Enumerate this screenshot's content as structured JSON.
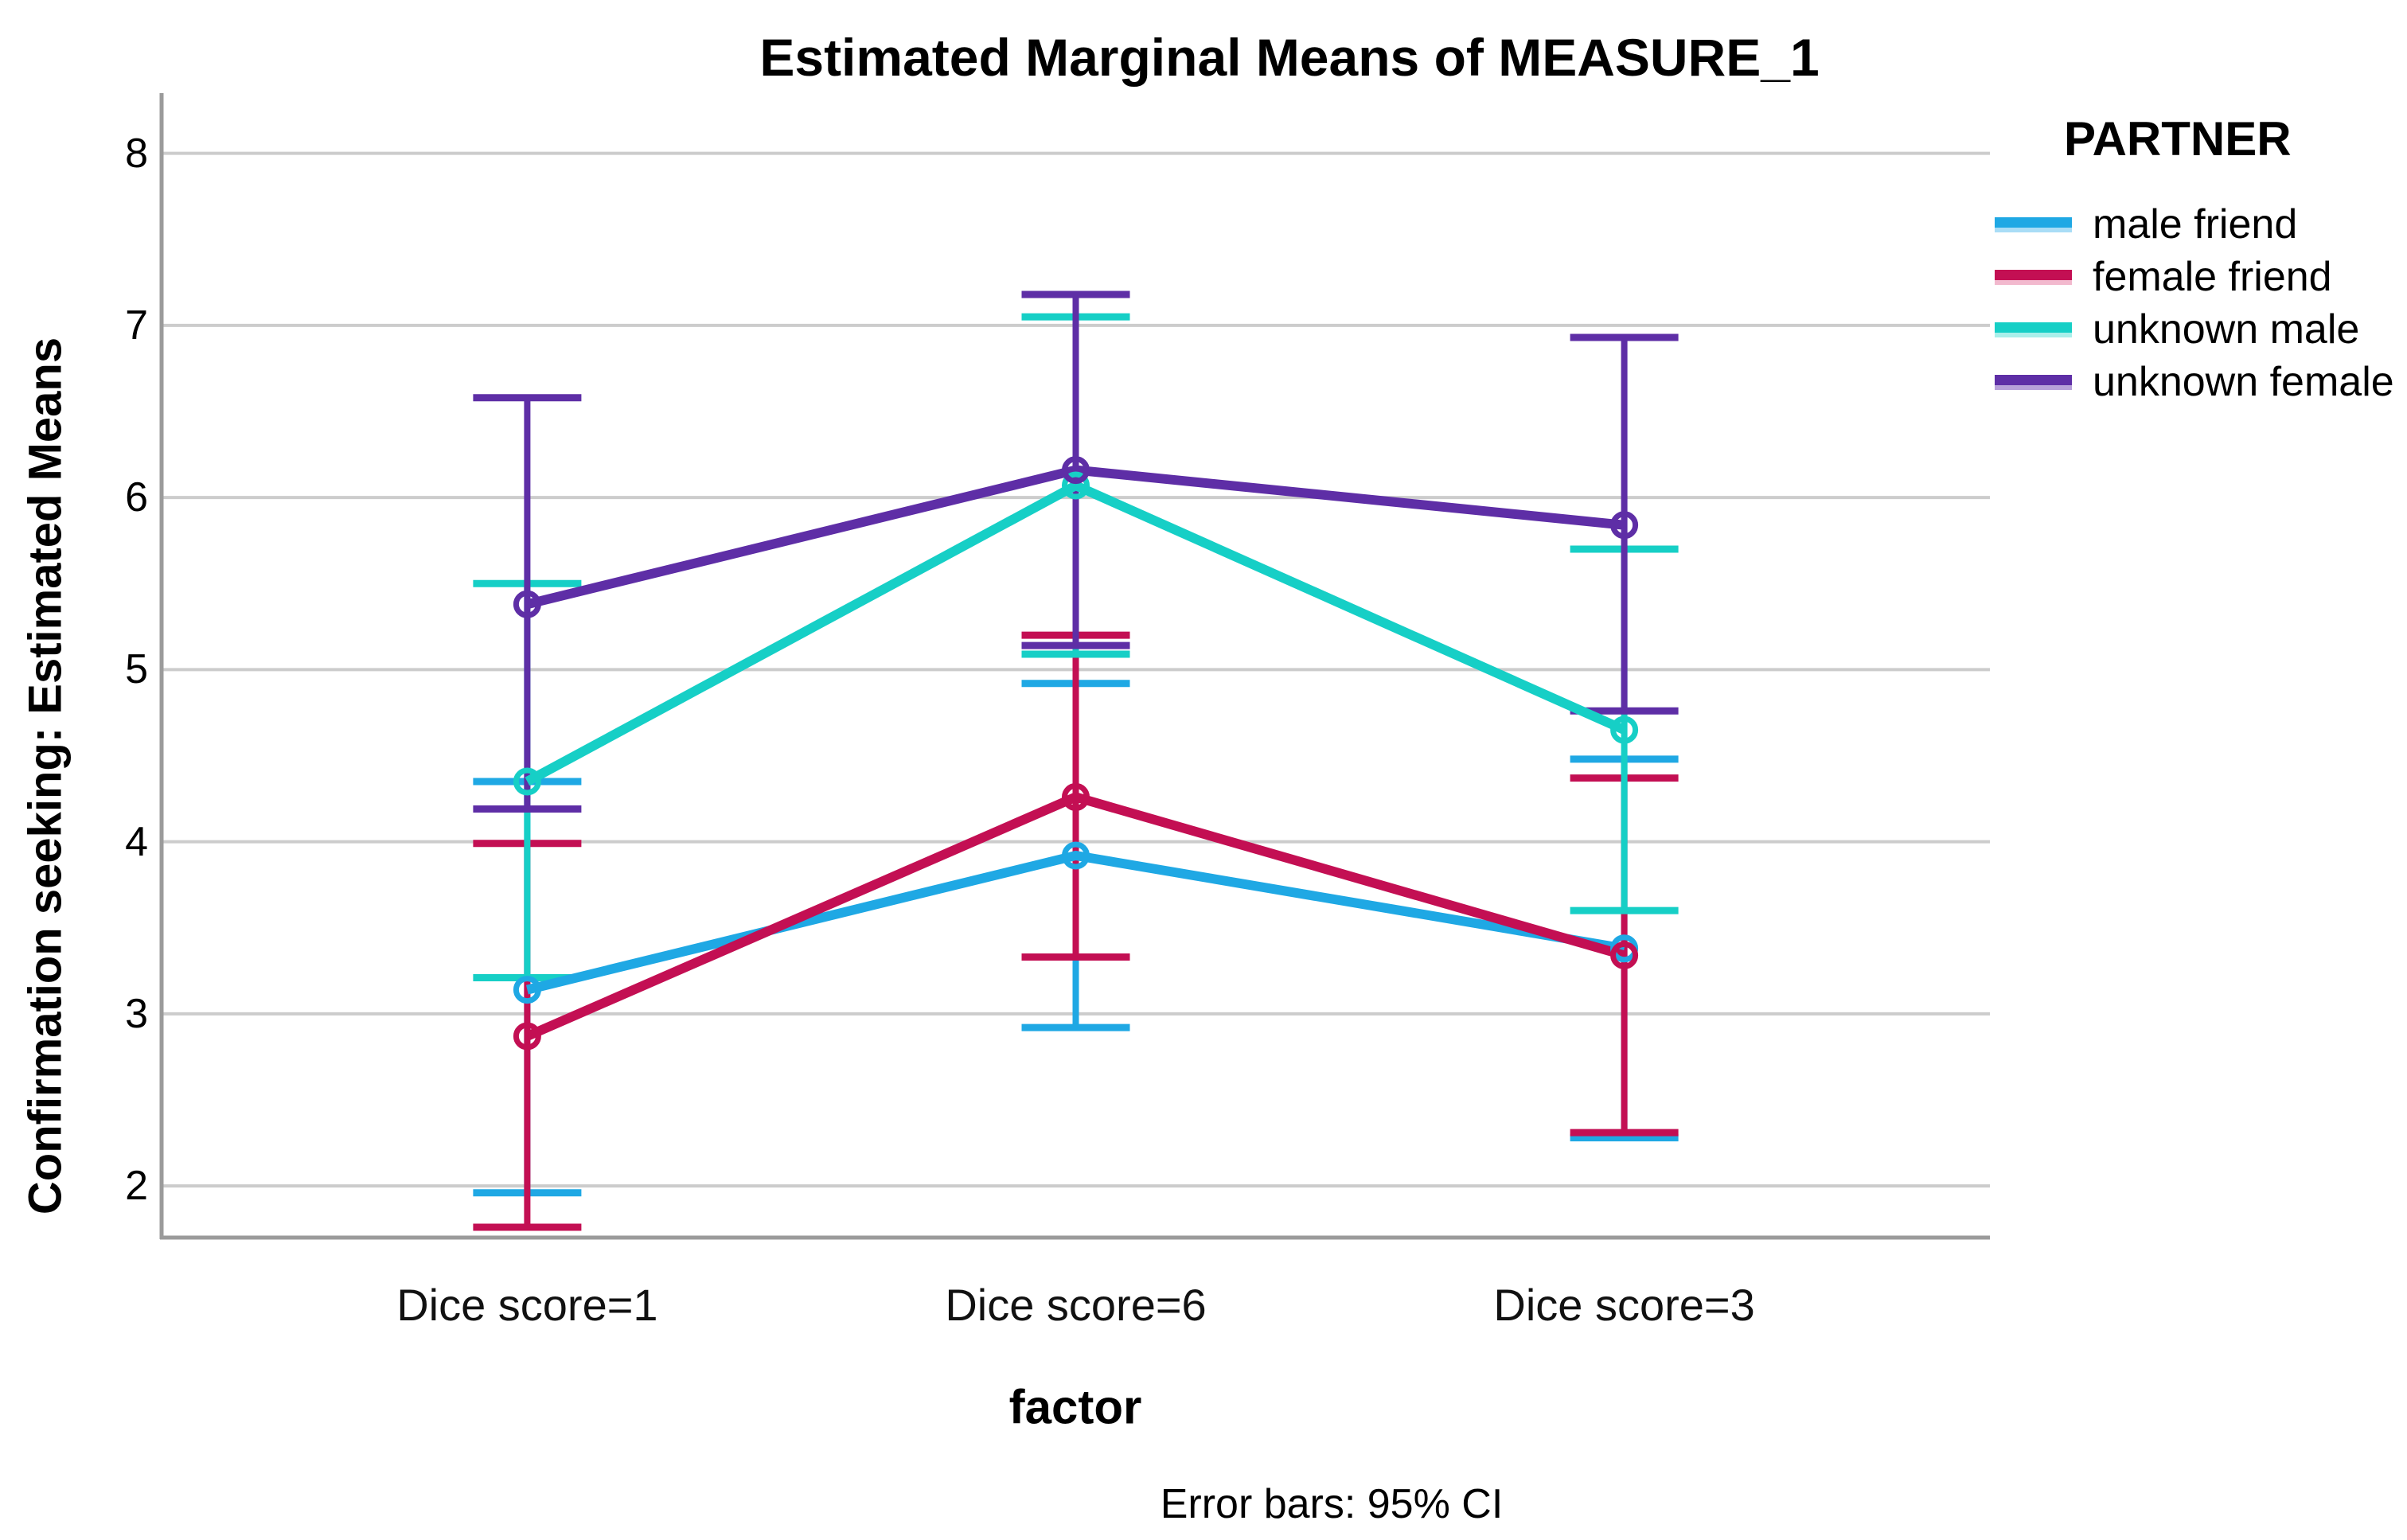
{
  "chart": {
    "title": "Estimated Marginal Means of MEASURE_1",
    "y_axis_title": "Confirmation seeking: Estimated Means",
    "x_axis_title": "factor",
    "footnote": "Error bars: 95% CI",
    "legend_title": "PARTNER",
    "colors": {
      "gridline": "#CCCCCC",
      "axis_line": "#9B9B9B",
      "text": "#000000"
    }
  },
  "chart_data": {
    "type": "line",
    "title": "Estimated Marginal Means of MEASURE_1",
    "xlabel": "factor",
    "ylabel": "Confirmation seeking: Estimated Means",
    "categories": [
      "Dice score=1",
      "Dice score=6",
      "Dice score=3"
    ],
    "yticks": [
      2,
      3,
      4,
      5,
      6,
      7,
      8
    ],
    "ylim": [
      1.7,
      8.35
    ],
    "grid": true,
    "legend_position": "right",
    "error_bars": "95% CI",
    "marker": "open-circle",
    "series": [
      {
        "name": "male friend",
        "color": "#1FA8E4",
        "tint": "#A9DDF6",
        "means": [
          3.14,
          3.92,
          3.38
        ],
        "ci_low": [
          1.96,
          2.92,
          2.28
        ],
        "ci_high": [
          4.35,
          4.92,
          4.48
        ]
      },
      {
        "name": "female friend",
        "color": "#C30F53",
        "tint": "#F2B9CE",
        "means": [
          2.87,
          4.26,
          3.34
        ],
        "ci_low": [
          1.76,
          3.33,
          2.31
        ],
        "ci_high": [
          3.99,
          5.2,
          4.37
        ]
      },
      {
        "name": "unknown male",
        "color": "#16CFC6",
        "tint": "#A9EFEA",
        "means": [
          4.35,
          6.07,
          4.65
        ],
        "ci_low": [
          3.21,
          5.09,
          3.6
        ],
        "ci_high": [
          5.5,
          7.05,
          5.7
        ]
      },
      {
        "name": "unknown female",
        "color": "#5E2EA6",
        "tint": "#B7A0D9",
        "means": [
          5.38,
          6.16,
          5.84
        ],
        "ci_low": [
          4.19,
          5.14,
          4.76
        ],
        "ci_high": [
          6.58,
          7.18,
          6.93
        ]
      }
    ]
  }
}
